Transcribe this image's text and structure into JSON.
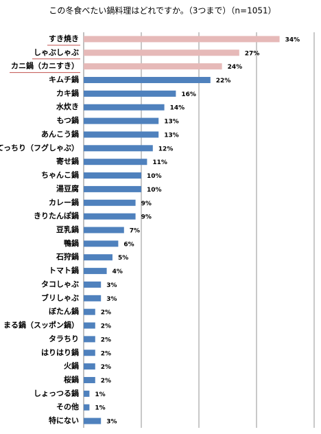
{
  "chart_data": {
    "type": "barh",
    "title": "この冬食べたい鍋料理はどれですか。（3つまで）（n=1051）",
    "categories": [
      "すき焼き",
      "しゃぶしゃぶ",
      "カニ鍋（カニすき）",
      "キムチ鍋",
      "カキ鍋",
      "水炊き",
      "もつ鍋",
      "あんこう鍋",
      "てっちり（フグしゃぶ）",
      "寄せ鍋",
      "ちゃんこ鍋",
      "湯豆腐",
      "カレー鍋",
      "きりたんぽ鍋",
      "豆乳鍋",
      "鴨鍋",
      "石狩鍋",
      "トマト鍋",
      "タコしゃぶ",
      "ブリしゃぶ",
      "ぼたん鍋",
      "まる鍋（スッポン鍋）",
      "タラちり",
      "はりはり鍋",
      "火鍋",
      "桜鍋",
      "しょっつる鍋",
      "その他",
      "特にない"
    ],
    "values": [
      34,
      27,
      24,
      22,
      16,
      14,
      13,
      13,
      12,
      11,
      10,
      10,
      9,
      9,
      7,
      6,
      5,
      4,
      3,
      3,
      2,
      2,
      2,
      2,
      2,
      2,
      1,
      1,
      3
    ],
    "value_labels": [
      "34%",
      "27%",
      "24%",
      "22%",
      "16%",
      "14%",
      "13%",
      "13%",
      "12%",
      "11%",
      "10%",
      "10%",
      "9%",
      "9%",
      "7%",
      "6%",
      "5%",
      "4%",
      "3%",
      "3%",
      "2%",
      "2%",
      "2%",
      "2%",
      "2%",
      "2%",
      "1%",
      "1%",
      "3%"
    ],
    "colors": [
      "#e6b9b8",
      "#e6b9b8",
      "#e6b9b8",
      "#4f81bd",
      "#4f81bd",
      "#4f81bd",
      "#4f81bd",
      "#4f81bd",
      "#4f81bd",
      "#4f81bd",
      "#4f81bd",
      "#4f81bd",
      "#4f81bd",
      "#4f81bd",
      "#4f81bd",
      "#4f81bd",
      "#4f81bd",
      "#4f81bd",
      "#4f81bd",
      "#4f81bd",
      "#4f81bd",
      "#4f81bd",
      "#4f81bd",
      "#4f81bd",
      "#4f81bd",
      "#4f81bd",
      "#4f81bd",
      "#4f81bd",
      "#4f81bd"
    ],
    "xlim": [
      0,
      40
    ],
    "xticks": [
      0,
      10,
      20,
      30,
      40
    ],
    "grid": true
  }
}
